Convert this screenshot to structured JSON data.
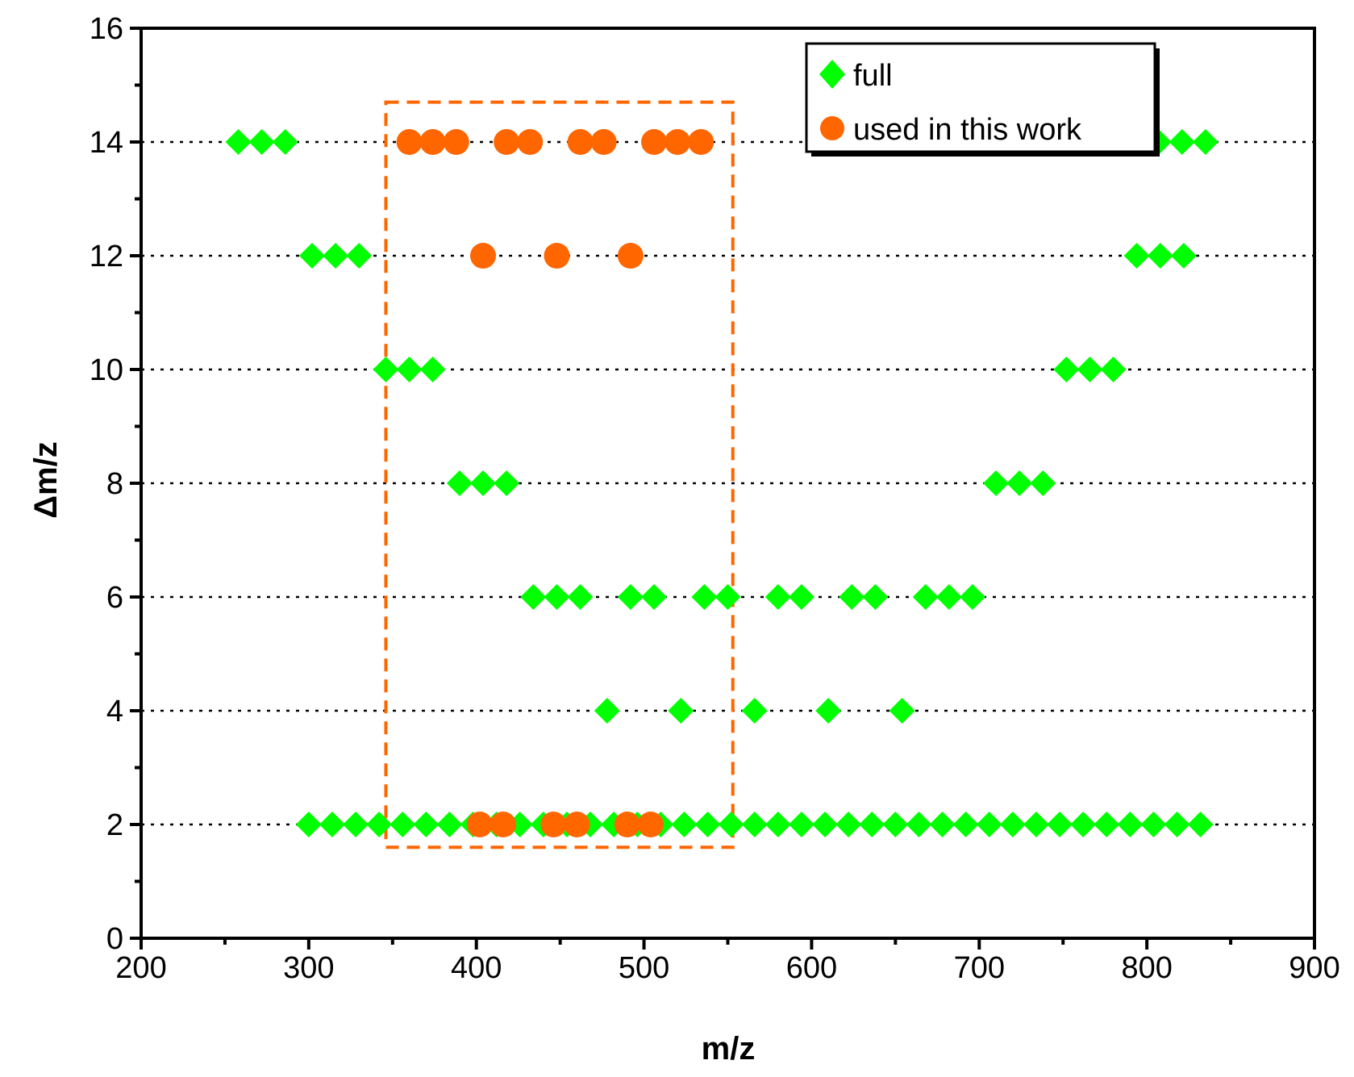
{
  "chart_data": {
    "type": "scatter",
    "xlabel": "m/z",
    "ylabel": "Δm/z",
    "xlim": [
      200,
      900
    ],
    "ylim": [
      0,
      16
    ],
    "xticks": [
      "200",
      "300",
      "400",
      "500",
      "600",
      "700",
      "800",
      "900"
    ],
    "yticks": [
      "0",
      "2",
      "4",
      "6",
      "8",
      "10",
      "12",
      "14",
      "16"
    ],
    "grid": "dotted horizontal lines at y = 2, 4, 6, 8, 10, 12, 14",
    "legend_position": "top-right",
    "highlight_region": {
      "x_range": [
        346,
        553
      ],
      "y_range": [
        1.6,
        14.7
      ],
      "style": "dashed orange rectangle"
    },
    "colors": {
      "full": "#00ff00",
      "used": "#ff6600",
      "box": "#ff6600"
    },
    "series": [
      {
        "name": "full",
        "marker": "diamond",
        "points": [
          [
            258,
            14
          ],
          [
            272,
            14
          ],
          [
            286,
            14
          ],
          [
            807,
            14
          ],
          [
            821,
            14
          ],
          [
            835,
            14
          ],
          [
            302,
            12
          ],
          [
            316,
            12
          ],
          [
            330,
            12
          ],
          [
            794,
            12
          ],
          [
            808,
            12
          ],
          [
            822,
            12
          ],
          [
            346,
            10
          ],
          [
            360,
            10
          ],
          [
            374,
            10
          ],
          [
            752,
            10
          ],
          [
            766,
            10
          ],
          [
            780,
            10
          ],
          [
            390,
            8
          ],
          [
            404,
            8
          ],
          [
            418,
            8
          ],
          [
            710,
            8
          ],
          [
            724,
            8
          ],
          [
            738,
            8
          ],
          [
            434,
            6
          ],
          [
            448,
            6
          ],
          [
            462,
            6
          ],
          [
            492,
            6
          ],
          [
            506,
            6
          ],
          [
            536,
            6
          ],
          [
            550,
            6
          ],
          [
            580,
            6
          ],
          [
            594,
            6
          ],
          [
            624,
            6
          ],
          [
            638,
            6
          ],
          [
            668,
            6
          ],
          [
            682,
            6
          ],
          [
            696,
            6
          ],
          [
            478,
            4
          ],
          [
            522,
            4
          ],
          [
            566,
            4
          ],
          [
            610,
            4
          ],
          [
            654,
            4
          ],
          [
            300,
            2
          ],
          [
            314,
            2
          ],
          [
            328,
            2
          ],
          [
            342,
            2
          ],
          [
            356,
            2
          ],
          [
            370,
            2
          ],
          [
            384,
            2
          ],
          [
            398,
            2
          ],
          [
            412,
            2
          ],
          [
            426,
            2
          ],
          [
            440,
            2
          ],
          [
            454,
            2
          ],
          [
            468,
            2
          ],
          [
            482,
            2
          ],
          [
            496,
            2
          ],
          [
            510,
            2
          ],
          [
            524,
            2
          ],
          [
            538,
            2
          ],
          [
            552,
            2
          ],
          [
            566,
            2
          ],
          [
            580,
            2
          ],
          [
            594,
            2
          ],
          [
            608,
            2
          ],
          [
            622,
            2
          ],
          [
            636,
            2
          ],
          [
            650,
            2
          ],
          [
            664,
            2
          ],
          [
            678,
            2
          ],
          [
            692,
            2
          ],
          [
            706,
            2
          ],
          [
            720,
            2
          ],
          [
            734,
            2
          ],
          [
            748,
            2
          ],
          [
            762,
            2
          ],
          [
            776,
            2
          ],
          [
            790,
            2
          ],
          [
            804,
            2
          ],
          [
            818,
            2
          ],
          [
            832,
            2
          ]
        ]
      },
      {
        "name": "used in this work",
        "marker": "circle",
        "points": [
          [
            360,
            14
          ],
          [
            374,
            14
          ],
          [
            388,
            14
          ],
          [
            418,
            14
          ],
          [
            432,
            14
          ],
          [
            462,
            14
          ],
          [
            476,
            14
          ],
          [
            506,
            14
          ],
          [
            520,
            14
          ],
          [
            534,
            14
          ],
          [
            404,
            12
          ],
          [
            448,
            12
          ],
          [
            492,
            12
          ],
          [
            402,
            2
          ],
          [
            416,
            2
          ],
          [
            446,
            2
          ],
          [
            460,
            2
          ],
          [
            490,
            2
          ],
          [
            504,
            2
          ]
        ]
      }
    ]
  }
}
